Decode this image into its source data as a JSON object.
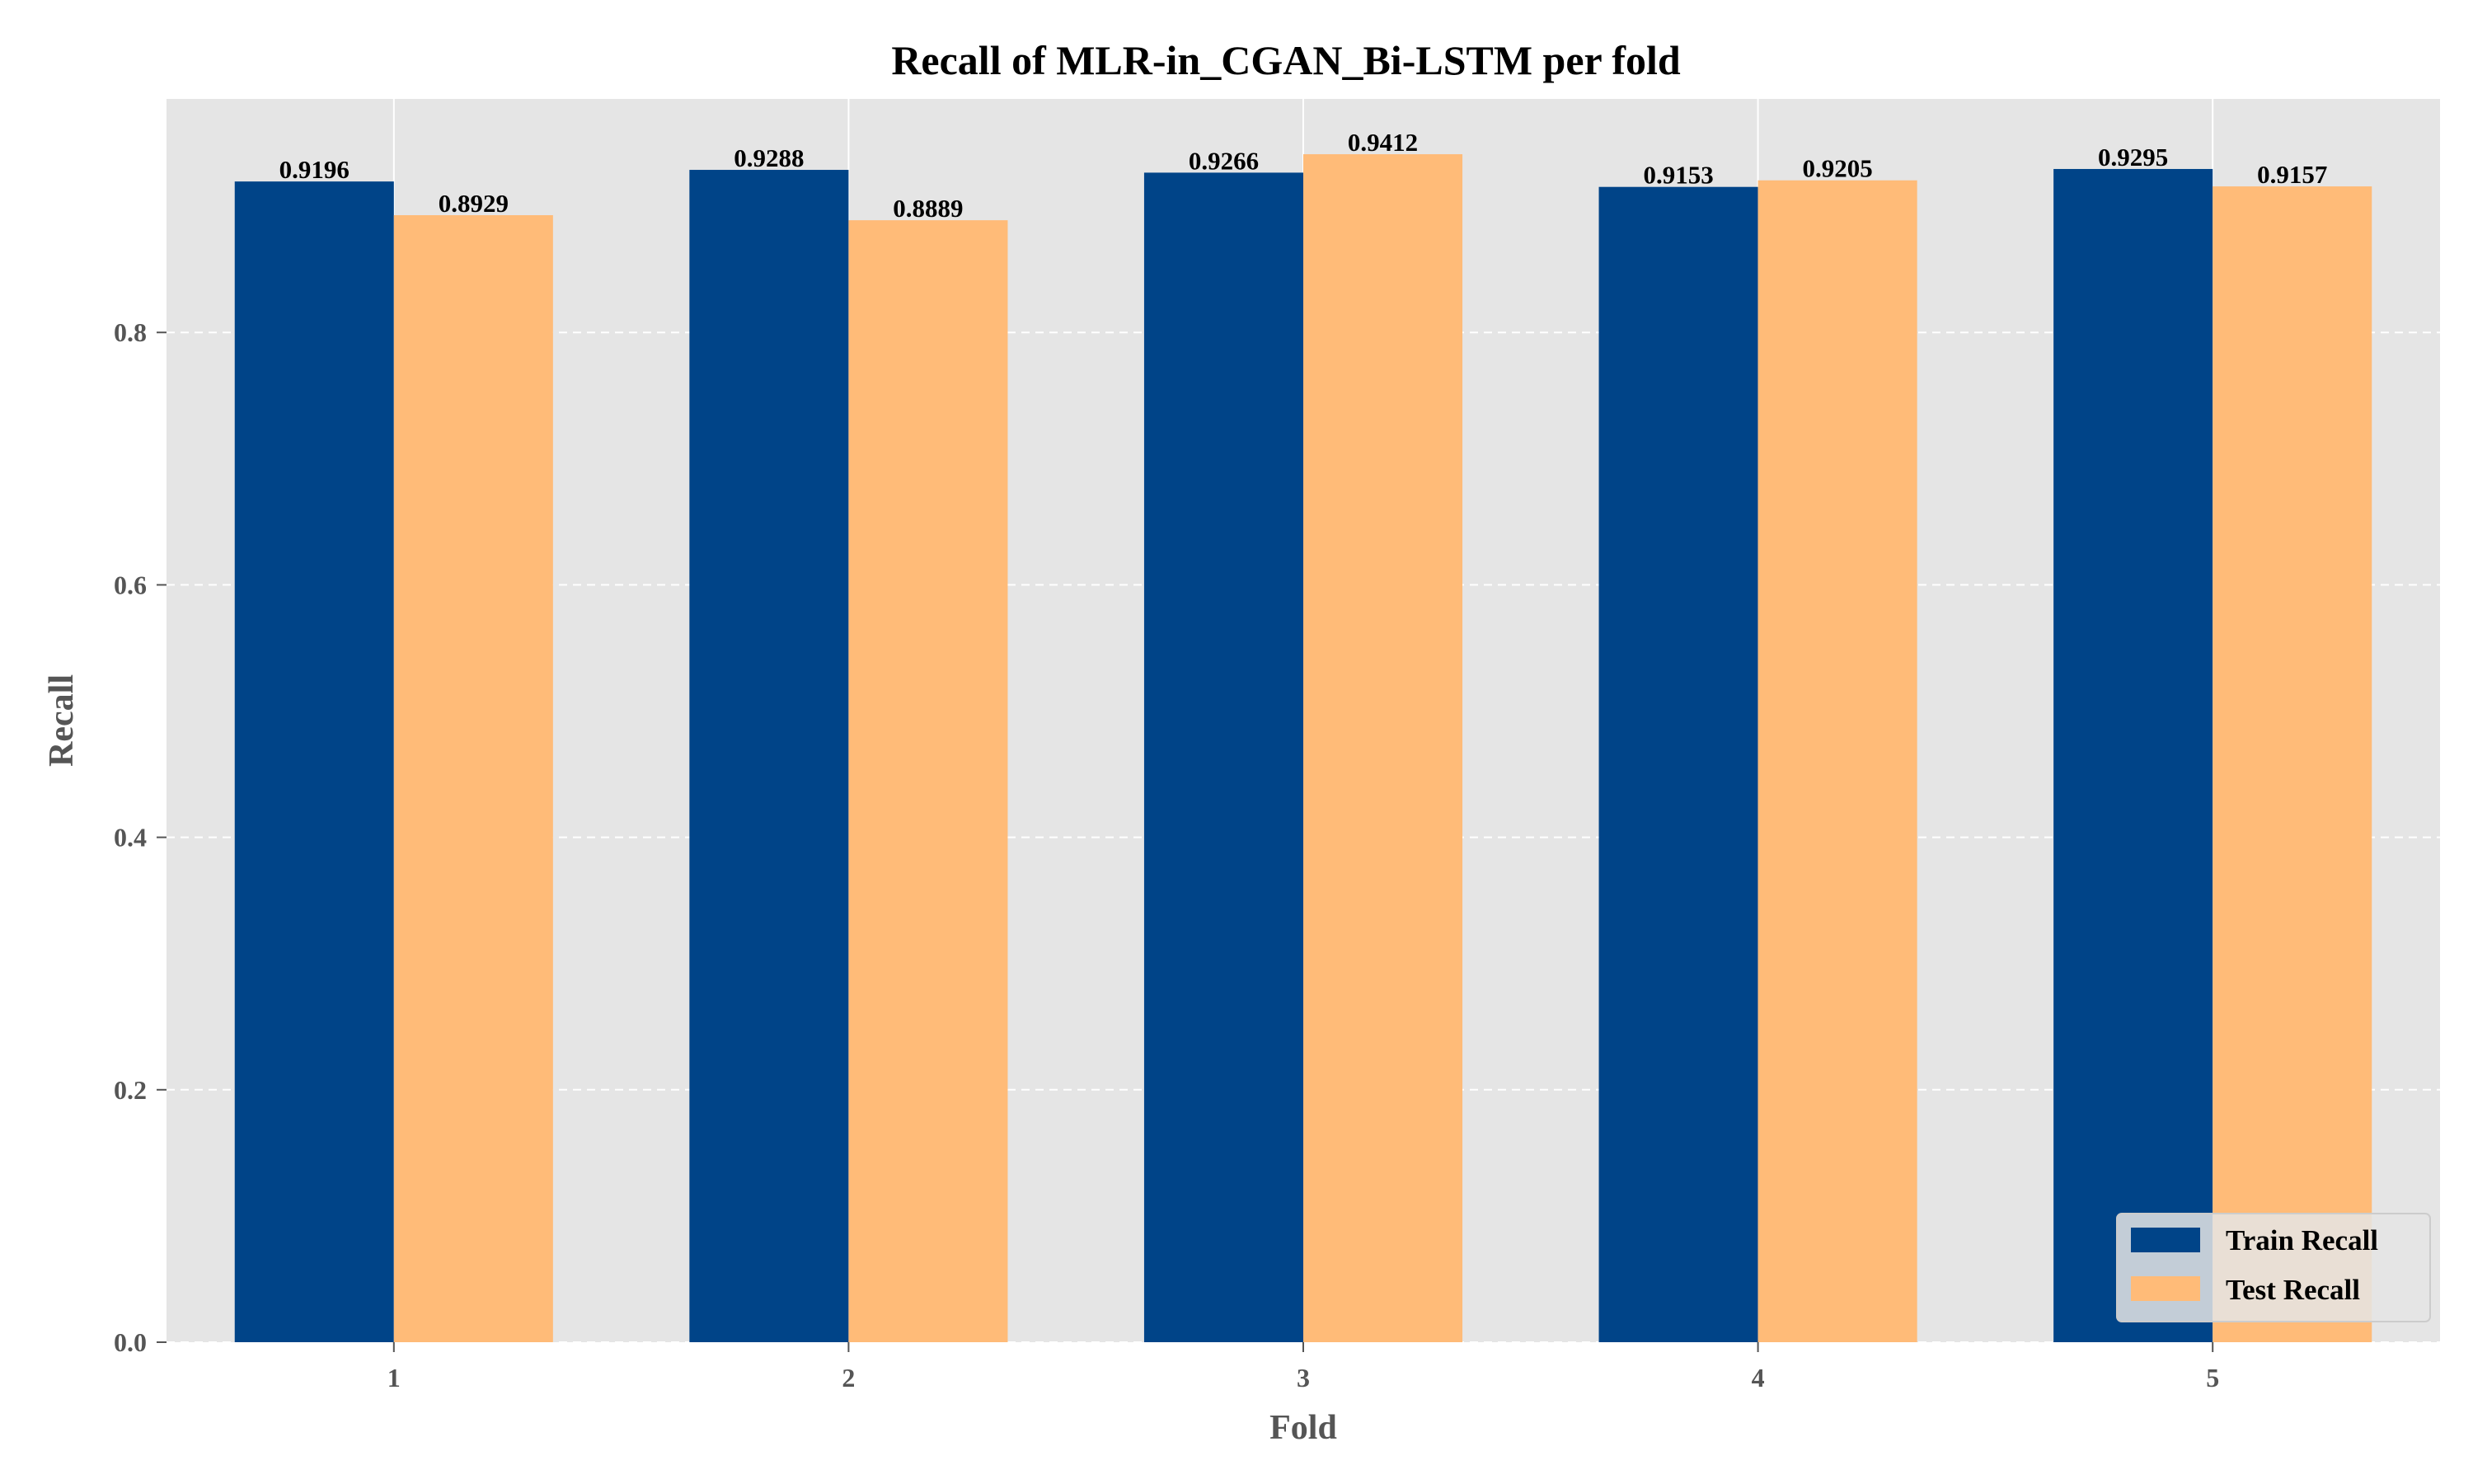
{
  "chart_data": {
    "type": "bar",
    "title": "Recall of MLR-in_CGAN_Bi-LSTM per fold",
    "xlabel": "Fold",
    "ylabel": "Recall",
    "categories": [
      "1",
      "2",
      "3",
      "4",
      "5"
    ],
    "ylim": [
      0,
      0.985
    ],
    "yticks": [
      0.0,
      0.2,
      0.4,
      0.6,
      0.8
    ],
    "ytick_labels": [
      "0.0",
      "0.2",
      "0.4",
      "0.6",
      "0.8"
    ],
    "grid": true,
    "legend_position": "bottom-right",
    "background_color": "#e5e5e5",
    "series": [
      {
        "name": "Train Recall",
        "color": "#004488",
        "values": [
          0.9196,
          0.9288,
          0.9266,
          0.9153,
          0.9295
        ],
        "labels": [
          "0.9196",
          "0.9288",
          "0.9266",
          "0.9153",
          "0.9295"
        ]
      },
      {
        "name": "Test Recall",
        "color": "#ffbb78",
        "values": [
          0.8929,
          0.8889,
          0.9412,
          0.9205,
          0.9157
        ],
        "labels": [
          "0.8929",
          "0.8889",
          "0.9412",
          "0.9205",
          "0.9157"
        ]
      }
    ]
  }
}
